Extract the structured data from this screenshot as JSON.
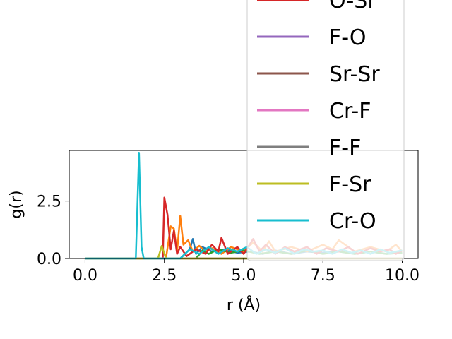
{
  "chart_data": {
    "type": "line",
    "xlabel": "r (Å)",
    "ylabel": "g(r)",
    "xlim": [
      -0.5,
      10.5
    ],
    "ylim": [
      0,
      4.7
    ],
    "x_ticks": [
      {
        "value": 0.0,
        "label": "0.0"
      },
      {
        "value": 2.5,
        "label": "2.5"
      },
      {
        "value": 5.0,
        "label": "5.0"
      },
      {
        "value": 7.5,
        "label": "7.5"
      },
      {
        "value": 10.0,
        "label": "10.0"
      }
    ],
    "y_ticks": [
      {
        "value": 0.0,
        "label": "0.0"
      },
      {
        "value": 2.5,
        "label": "2.5"
      }
    ],
    "legend_placement": "upper-right (extends above plot area)",
    "grid": false,
    "series": [
      {
        "name": "",
        "color": "#1f77b4",
        "x": [
          0.0,
          3.0,
          3.15,
          3.3,
          3.4,
          3.5,
          3.7,
          4.0,
          4.4,
          4.8,
          5.2,
          5.6,
          6.0,
          6.5,
          7.0,
          7.5,
          8.0,
          8.5,
          9.0,
          9.5,
          10.0
        ],
        "y": [
          0,
          0,
          0.2,
          0.4,
          0.85,
          0.2,
          0.5,
          0.3,
          0.4,
          0.25,
          0.3,
          0.2,
          0.35,
          0.2,
          0.3,
          0.25,
          0.3,
          0.2,
          0.3,
          0.2,
          0.25
        ]
      },
      {
        "name": "",
        "color": "#ff7f0e",
        "x": [
          0.0,
          2.4,
          2.55,
          2.7,
          2.8,
          2.9,
          3.0,
          3.1,
          3.25,
          3.4,
          3.6,
          3.8,
          4.0,
          4.3,
          4.6,
          5.0,
          5.3,
          5.6,
          5.8,
          6.0,
          6.5,
          7.0,
          7.5,
          7.8,
          8.0,
          8.5,
          9.0,
          9.5,
          9.8,
          10.0
        ],
        "y": [
          0,
          0,
          0,
          1.4,
          1.3,
          0.3,
          1.85,
          0.6,
          0.8,
          0.3,
          0.55,
          0.3,
          0.45,
          0.2,
          0.5,
          0.3,
          0.7,
          0.3,
          0.75,
          0.3,
          0.5,
          0.3,
          0.6,
          0.4,
          0.8,
          0.3,
          0.5,
          0.3,
          0.6,
          0.3
        ]
      },
      {
        "name": "",
        "color": "#2ca02c",
        "x": [
          0.0,
          3.5,
          3.7,
          3.9,
          4.2,
          4.6,
          5.0,
          5.5,
          6.0,
          6.5,
          7.0,
          7.5,
          8.0,
          8.5,
          9.0,
          9.5,
          10.0
        ],
        "y": [
          0,
          0,
          0.35,
          0.2,
          0.4,
          0.25,
          0.35,
          0.2,
          0.3,
          0.2,
          0.35,
          0.2,
          0.3,
          0.2,
          0.3,
          0.2,
          0.25
        ]
      },
      {
        "name": "O-Sr",
        "color": "#d62728",
        "x": [
          0.0,
          2.45,
          2.5,
          2.6,
          2.7,
          2.8,
          2.9,
          3.0,
          3.2,
          3.5,
          3.8,
          4.0,
          4.2,
          4.3,
          4.5,
          4.8,
          5.0,
          5.3,
          5.5,
          5.7,
          6.0,
          6.3,
          6.6,
          7.0,
          7.3,
          7.6,
          8.0,
          8.3,
          8.6,
          9.0,
          9.3,
          9.6,
          9.8,
          10.0
        ],
        "y": [
          0,
          0,
          2.65,
          1.9,
          0.4,
          1.2,
          0.2,
          0.5,
          0.1,
          0.4,
          0.2,
          0.6,
          0.3,
          0.9,
          0.2,
          0.5,
          0.2,
          0.85,
          0.3,
          0.6,
          0.2,
          0.5,
          0.3,
          0.5,
          0.2,
          0.45,
          0.3,
          0.5,
          0.2,
          0.45,
          0.3,
          0.4,
          0.2,
          0.35
        ]
      },
      {
        "name": "F-O",
        "color": "#9467bd",
        "x": [
          0.0,
          10.0
        ],
        "y": [
          0,
          0
        ]
      },
      {
        "name": "Sr-Sr",
        "color": "#8c564b",
        "x": [
          0.0,
          10.0
        ],
        "y": [
          0,
          0
        ]
      },
      {
        "name": "Cr-F",
        "color": "#e377c2",
        "x": [
          0.0,
          10.0
        ],
        "y": [
          0,
          0
        ]
      },
      {
        "name": "F-F",
        "color": "#7f7f7f",
        "x": [
          0.0,
          10.0
        ],
        "y": [
          0,
          0
        ]
      },
      {
        "name": "F-Sr",
        "color": "#bcbd22",
        "x": [
          0.0,
          2.3,
          2.42,
          2.55,
          2.7,
          3.0,
          10.0
        ],
        "y": [
          0,
          0,
          0.55,
          0.0,
          0.0,
          0.0,
          0.0
        ]
      },
      {
        "name": "Cr-O",
        "color": "#17becf",
        "x": [
          0.0,
          1.6,
          1.7,
          1.78,
          1.85,
          3.0,
          3.3,
          3.6,
          3.9,
          4.2,
          4.5,
          4.8,
          5.1,
          5.4,
          5.7,
          6.0,
          6.3,
          6.6,
          6.9,
          7.2,
          7.5,
          7.8,
          8.1,
          8.4,
          8.7,
          9.0,
          9.3,
          9.6,
          10.0
        ],
        "y": [
          0,
          0,
          4.6,
          0.5,
          0,
          0,
          0.4,
          0.2,
          0.5,
          0.2,
          0.45,
          0.3,
          0.5,
          0.2,
          0.4,
          0.25,
          0.45,
          0.2,
          0.4,
          0.3,
          0.35,
          0.2,
          0.4,
          0.25,
          0.35,
          0.2,
          0.4,
          0.25,
          0.35
        ]
      }
    ],
    "legend_entries": [
      {
        "name": "O-Sr",
        "color": "#d62728"
      },
      {
        "name": "F-O",
        "color": "#9467bd"
      },
      {
        "name": "Sr-Sr",
        "color": "#8c564b"
      },
      {
        "name": "Cr-F",
        "color": "#e377c2"
      },
      {
        "name": "F-F",
        "color": "#7f7f7f"
      },
      {
        "name": "F-Sr",
        "color": "#bcbd22"
      },
      {
        "name": "Cr-O",
        "color": "#17becf"
      }
    ]
  }
}
